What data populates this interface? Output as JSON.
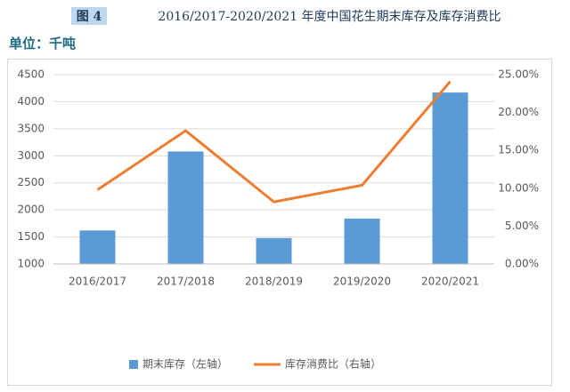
{
  "chart_data": {
    "type": "combo",
    "figure_label": "图 4",
    "title": "2016/2017-2020/2021 年度中国花生期末库存及库存消费比",
    "subtitle": "单位：千吨",
    "categories": [
      "2016/2017",
      "2017/2018",
      "2018/2019",
      "2019/2020",
      "2020/2021"
    ],
    "series": [
      {
        "name": "期末库存（左轴）",
        "type": "bar",
        "color": "#5b9bd5",
        "axis": "y",
        "values": [
          1620,
          3080,
          1480,
          1840,
          4170
        ]
      },
      {
        "name": "库存消费比（右轴）",
        "type": "line",
        "color": "#ed7d31",
        "axis": "y2",
        "values": [
          9.8,
          17.6,
          8.2,
          10.4,
          24.1
        ]
      }
    ],
    "ylim": [
      1000,
      4500
    ],
    "yticks": [
      1000,
      1500,
      2000,
      2500,
      3000,
      3500,
      4000,
      4500
    ],
    "y2lim": [
      0,
      25
    ],
    "y2ticks": [
      {
        "value": 0,
        "label": "0.00%"
      },
      {
        "value": 5,
        "label": "5.00%"
      },
      {
        "value": 10,
        "label": "10.00%"
      },
      {
        "value": 15,
        "label": "15.00%"
      },
      {
        "value": 20,
        "label": "20.00%"
      },
      {
        "value": 25,
        "label": "25.00%"
      }
    ],
    "grid": true,
    "legend": "bottom"
  }
}
